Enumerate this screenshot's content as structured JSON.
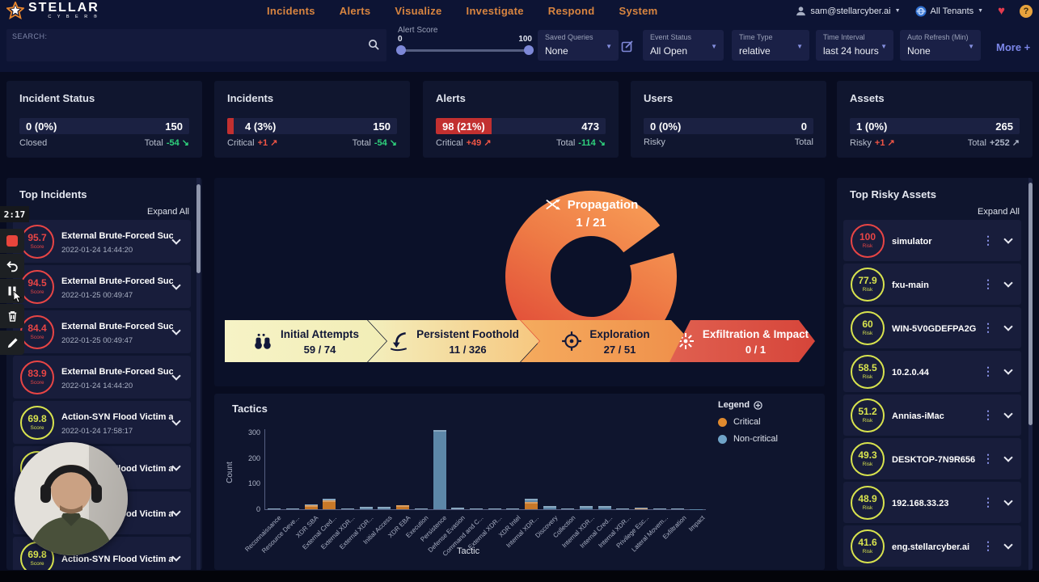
{
  "header": {
    "brand": {
      "name": "STELLAR",
      "sub": "C Y B E R ®"
    },
    "nav": [
      "Incidents",
      "Alerts",
      "Visualize",
      "Investigate",
      "Respond",
      "System"
    ],
    "user": {
      "email": "sam@stellarcyber.ai"
    },
    "tenant": {
      "label": "All Tenants"
    },
    "help": "?"
  },
  "filters": {
    "search_label": "SEARCH:",
    "alert_score": {
      "label": "Alert Score",
      "min": "0",
      "max": "100"
    },
    "saved_queries": {
      "label": "Saved Queries",
      "value": "None"
    },
    "event_status": {
      "label": "Event Status",
      "value": "All Open"
    },
    "time_type": {
      "label": "Time Type",
      "value": "relative"
    },
    "time_interval": {
      "label": "Time Interval",
      "value": "last 24 hours"
    },
    "auto_refresh": {
      "label": "Auto Refresh (Min)",
      "value": "None"
    },
    "more": "More +"
  },
  "stats": [
    {
      "title": "Incident Status",
      "left_value": "0 (0%)",
      "right_value": "150",
      "left_label": "Closed",
      "right_label": "Total",
      "right_delta": {
        "text": "-54",
        "arrow": "↘",
        "color": "#2fd27d"
      }
    },
    {
      "title": "Incidents",
      "left_value": "4 (3%)",
      "right_value": "150",
      "left_label": "Critical",
      "right_label": "Total",
      "sliver_color": "#c23030",
      "left_delta": {
        "text": "+1",
        "arrow": "↗",
        "color": "#f05545"
      },
      "right_delta": {
        "text": "-54",
        "arrow": "↘",
        "color": "#2fd27d"
      }
    },
    {
      "title": "Alerts",
      "left_value": "98 (21%)",
      "right_value": "473",
      "left_label": "Critical",
      "right_label": "Total",
      "chip_color": "#c23030",
      "left_delta": {
        "text": "+49",
        "arrow": "↗",
        "color": "#f05545"
      },
      "right_delta": {
        "text": "-114",
        "arrow": "↘",
        "color": "#2fd27d"
      }
    },
    {
      "title": "Users",
      "left_value": "0 (0%)",
      "right_value": "0",
      "left_label": "Risky",
      "right_label": "Total"
    },
    {
      "title": "Assets",
      "left_value": "1 (0%)",
      "right_value": "265",
      "left_label": "Risky",
      "right_label": "Total",
      "left_delta": {
        "text": "+1",
        "arrow": "↗",
        "color": "#f05545"
      },
      "right_delta": {
        "text": "+252",
        "arrow": "↗",
        "color": "#aeb6c8"
      }
    }
  ],
  "incidents_panel": {
    "title": "Top Incidents",
    "expand": "Expand All",
    "score_label": "Score",
    "items": [
      {
        "score": "95.7",
        "title": "External Brute-Forced Succ...",
        "date": "2022-01-24 14:44:20",
        "color": "#e84545"
      },
      {
        "score": "94.5",
        "title": "External Brute-Forced Succ...",
        "date": "2022-01-25 00:49:47",
        "color": "#e84545"
      },
      {
        "score": "84.4",
        "title": "External Brute-Forced Succ...",
        "date": "2022-01-25 00:49:47",
        "color": "#e84545"
      },
      {
        "score": "83.9",
        "title": "External Brute-Forced Succ...",
        "date": "2022-01-24 14:44:20",
        "color": "#e84545"
      },
      {
        "score": "69.8",
        "title": "Action-SYN Flood Victim at...",
        "date": "2022-01-24 17:58:17",
        "color": "#d8e34e"
      },
      {
        "score": "69.8",
        "title": "Action-SYN Flood Victim at...",
        "date": "",
        "color": "#d8e34e"
      },
      {
        "score": "69.8",
        "title": "Action-SYN Flood Victim at...",
        "date": "",
        "color": "#d8e34e"
      },
      {
        "score": "69.8",
        "title": "Action-SYN Flood Victim at...",
        "date": "",
        "color": "#d8e34e"
      }
    ]
  },
  "killchain": {
    "propagation": {
      "label": "Propagation",
      "value": "1 / 21"
    },
    "stages": [
      {
        "label": "Initial Attempts",
        "value": "59 / 74",
        "bg1": "#f6f3c6",
        "bg2": "#f2edb6",
        "fg": "#111736"
      },
      {
        "label": "Persistent Foothold",
        "value": "11 / 326",
        "bg1": "#f3efbd",
        "bg2": "#f6c77f",
        "fg": "#111736"
      },
      {
        "label": "Exploration",
        "value": "27 / 51",
        "bg1": "#f5ab5e",
        "bg2": "#ef8f4a",
        "fg": "#111736"
      },
      {
        "label": "Exfiltration & Impact",
        "value": "0 / 1",
        "bg1": "#e06050",
        "bg2": "#d6453a",
        "fg": "#ffffff"
      }
    ]
  },
  "chart_data": {
    "type": "bar",
    "stacked": true,
    "title": "Tactics",
    "xlabel": "Tactic",
    "ylabel": "Count",
    "ylim": [
      0,
      300
    ],
    "yticks": [
      0,
      100,
      200,
      300
    ],
    "legend": {
      "title": "Legend",
      "position": "top-right",
      "entries": [
        {
          "label": "Critical",
          "color": "#e08a2e"
        },
        {
          "label": "Non-critical",
          "color": "#6fa3c7"
        }
      ]
    },
    "categories": [
      "Reconnaissance",
      "Resource Deve...",
      "XDR SBA",
      "External Cred...",
      "External XDR...",
      "External XDR...",
      "Initial Access",
      "XDR EBA",
      "Execution",
      "Persistence",
      "Defense Evasion",
      "Command and C...",
      "External XDR...",
      "XDR Intel",
      "Internal XDR...",
      "Discovery",
      "Collection",
      "Internal XDR...",
      "Internal Cred...",
      "Internal XDR...",
      "Privilege Esc...",
      "Lateral Movem...",
      "Exfiltration",
      "Impact"
    ],
    "series": [
      {
        "name": "Critical",
        "color": "#c87828",
        "values": [
          0,
          0,
          15,
          35,
          0,
          0,
          0,
          15,
          0,
          0,
          0,
          0,
          0,
          0,
          30,
          0,
          0,
          0,
          0,
          0,
          4,
          0,
          0,
          0
        ]
      },
      {
        "name": "Non-critical",
        "color": "#5d87a8",
        "values": [
          2,
          2,
          3,
          5,
          3,
          10,
          8,
          2,
          2,
          310,
          6,
          4,
          2,
          2,
          10,
          14,
          2,
          12,
          12,
          2,
          2,
          4,
          2,
          1
        ]
      }
    ]
  },
  "assets_panel": {
    "title": "Top Risky Assets",
    "expand": "Expand All",
    "risk_label": "Risk",
    "items": [
      {
        "score": "100",
        "name": "simulator",
        "color": "#e84545"
      },
      {
        "score": "77.9",
        "name": "fxu-main",
        "color": "#d8e34e"
      },
      {
        "score": "60",
        "name": "WIN-5V0GDEFPA2G",
        "color": "#d8e34e"
      },
      {
        "score": "58.5",
        "name": "10.2.0.44",
        "color": "#d8e34e"
      },
      {
        "score": "51.2",
        "name": "Annias-iMac",
        "color": "#d8e34e"
      },
      {
        "score": "49.3",
        "name": "DESKTOP-7N9R656",
        "color": "#d8e34e"
      },
      {
        "score": "48.9",
        "name": "192.168.33.23",
        "color": "#d8e34e"
      },
      {
        "score": "41.6",
        "name": "eng.stellarcyber.ai",
        "color": "#d8e34e"
      }
    ]
  },
  "recorder": {
    "time": "2:17"
  }
}
